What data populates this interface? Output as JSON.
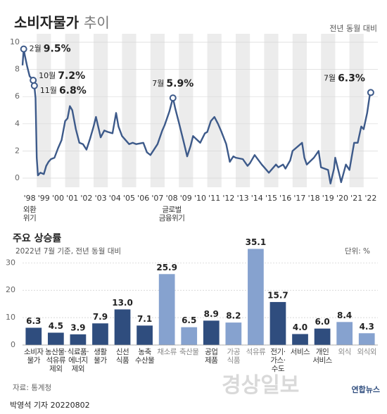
{
  "chart_data": [
    {
      "type": "line",
      "title": "소비자물가",
      "title_suffix": "추이",
      "subtitle": "전년 동월 대비",
      "x": [
        1998.0,
        1998.083,
        1998.167,
        1998.333,
        1998.5,
        1998.75,
        1998.833,
        1998.917,
        1999.0,
        1999.083,
        1999.25,
        1999.5,
        1999.667,
        1999.833,
        2000.0,
        2000.25,
        2000.5,
        2000.75,
        2001.0,
        2001.167,
        2001.333,
        2001.5,
        2001.75,
        2002.0,
        2002.25,
        2002.5,
        2002.75,
        2003.0,
        2003.167,
        2003.5,
        2003.75,
        2004.0,
        2004.333,
        2004.583,
        2004.75,
        2005.0,
        2005.5,
        2005.75,
        2006.0,
        2006.5,
        2006.75,
        2007.0,
        2007.5,
        2007.833,
        2008.0,
        2008.333,
        2008.583,
        2008.75,
        2009.0,
        2009.333,
        2009.583,
        2009.833,
        2010.0,
        2010.5,
        2010.833,
        2011.0,
        2011.25,
        2011.5,
        2011.75,
        2012.0,
        2012.333,
        2012.583,
        2012.833,
        2013.0,
        2013.5,
        2013.833,
        2014.0,
        2014.333,
        2014.833,
        2015.0,
        2015.333,
        2015.833,
        2016.0,
        2016.333,
        2016.5,
        2016.833,
        2017.0,
        2017.667,
        2017.833,
        2018.0,
        2018.5,
        2018.833,
        2019.0,
        2019.5,
        2019.667,
        2019.917,
        2020.0,
        2020.333,
        2020.417,
        2020.75,
        2021.0,
        2021.333,
        2021.583,
        2021.833,
        2022.0,
        2022.25,
        2022.417,
        2022.5
      ],
      "series": [
        {
          "color": "#3d5a8a",
          "values": [
            8.3,
            9.5,
            9.0,
            8.2,
            7.5,
            7.2,
            6.8,
            5.9,
            1.5,
            0.2,
            0.4,
            0.3,
            0.9,
            1.2,
            1.4,
            1.5,
            2.2,
            2.8,
            4.2,
            4.4,
            5.3,
            5.0,
            3.6,
            2.6,
            2.5,
            2.1,
            2.9,
            3.8,
            4.5,
            3.0,
            3.5,
            3.4,
            3.3,
            4.8,
            3.8,
            3.1,
            2.5,
            2.6,
            2.5,
            2.6,
            1.9,
            1.7,
            2.5,
            3.5,
            3.9,
            4.9,
            5.9,
            5.1,
            4.1,
            2.7,
            1.6,
            2.4,
            3.1,
            2.6,
            3.3,
            3.4,
            4.2,
            4.5,
            4.0,
            3.4,
            2.5,
            1.2,
            1.6,
            1.5,
            1.4,
            0.9,
            1.1,
            1.7,
            1.0,
            0.8,
            0.4,
            1.0,
            0.8,
            1.0,
            0.7,
            1.3,
            2.0,
            2.6,
            1.5,
            1.0,
            1.5,
            2.0,
            0.8,
            0.6,
            -0.4,
            0.7,
            1.5,
            0.1,
            -0.3,
            1.0,
            0.6,
            2.6,
            2.6,
            3.8,
            3.6,
            4.8,
            6.0,
            6.3
          ]
        }
      ],
      "xlim": [
        1998,
        2023
      ],
      "xticks": [
        {
          "value": 1998,
          "label": "'98"
        },
        {
          "value": 1999,
          "label": "'99"
        },
        {
          "value": 2000,
          "label": "'00"
        },
        {
          "value": 2001,
          "label": "'01"
        },
        {
          "value": 2002,
          "label": "'02"
        },
        {
          "value": 2003,
          "label": "'03"
        },
        {
          "value": 2004,
          "label": "'04"
        },
        {
          "value": 2005,
          "label": "'05"
        },
        {
          "value": 2006,
          "label": "'06"
        },
        {
          "value": 2007,
          "label": "'07"
        },
        {
          "value": 2008,
          "label": "'08"
        },
        {
          "value": 2009,
          "label": "'09"
        },
        {
          "value": 2010,
          "label": "'10"
        },
        {
          "value": 2011,
          "label": "'11"
        },
        {
          "value": 2012,
          "label": "'12"
        },
        {
          "value": 2013,
          "label": "'13"
        },
        {
          "value": 2014,
          "label": "'14"
        },
        {
          "value": 2015,
          "label": "'15"
        },
        {
          "value": 2016,
          "label": "'16"
        },
        {
          "value": 2017,
          "label": "'17"
        },
        {
          "value": 2018,
          "label": "'18"
        },
        {
          "value": 2019,
          "label": "'19"
        },
        {
          "value": 2020,
          "label": "'20"
        },
        {
          "value": 2021,
          "label": "'21"
        },
        {
          "value": 2022,
          "label": "'22"
        }
      ],
      "ylim": [
        -0.7,
        10
      ],
      "yticks": [
        0,
        2,
        4,
        6,
        8,
        10
      ],
      "grid": true,
      "annotations": [
        {
          "x": 1998.083,
          "value": 9.5,
          "month": "2월",
          "label": "9.5%"
        },
        {
          "x": 1998.75,
          "value": 7.2,
          "month": "10월",
          "label": "7.2%"
        },
        {
          "x": 1998.833,
          "value": 6.8,
          "month": "11월",
          "label": "6.8%"
        },
        {
          "x": 2008.583,
          "value": 5.9,
          "month": "7월",
          "label": "5.9%"
        },
        {
          "x": 2022.5,
          "value": 6.3,
          "month": "7월",
          "label": "6.3%"
        }
      ],
      "x_notes": [
        {
          "x": 1998,
          "label": "외환\n위기"
        },
        {
          "x": 2008,
          "label": "글로벌\n금융위기"
        }
      ]
    },
    {
      "type": "bar",
      "title": "주요 상승률",
      "subtitle": "2022년 7월 기준, 전년 동월 대비",
      "unit_label": "단위: %",
      "categories": [
        "소비자\n물가",
        "농산물·\n석유류\n제외",
        "식료품·\n에너지\n제외",
        "생활\n물가",
        "신선\n식품",
        "농축\n수산물",
        "채소류",
        "축산물",
        "공업\n제품",
        "가공\n식품",
        "석유류",
        "전기·\n가스·\n수도",
        "서비스",
        "개인\n서비스",
        "외식",
        "외식외"
      ],
      "values": [
        6.3,
        4.5,
        3.9,
        7.9,
        13.0,
        7.1,
        25.9,
        6.5,
        8.9,
        8.2,
        35.1,
        15.7,
        4.0,
        6.0,
        8.4,
        4.3
      ],
      "value_labels": [
        "6.3",
        "4.5",
        "3.9",
        "7.9",
        "13.0",
        "7.1",
        "25.9",
        "6.5",
        "8.9",
        "8.2",
        "35.1",
        "15.7",
        "4.0",
        "6.0",
        "8.4",
        "4.3"
      ],
      "colors": [
        "#2f4d7e",
        "#2f4d7e",
        "#2f4d7e",
        "#2f4d7e",
        "#2f4d7e",
        "#2f4d7e",
        "#86a2cf",
        "#86a2cf",
        "#2f4d7e",
        "#86a2cf",
        "#86a2cf",
        "#2f4d7e",
        "#2f4d7e",
        "#2f4d7e",
        "#86a2cf",
        "#86a2cf"
      ],
      "ylim": [
        0,
        36
      ],
      "yticks": [
        0,
        10,
        20,
        30
      ],
      "grid": true
    }
  ],
  "source": "자료: 통계청",
  "byline": "박영석 기자 20220802",
  "logo": "연합뉴스",
  "watermark": "경상일보"
}
